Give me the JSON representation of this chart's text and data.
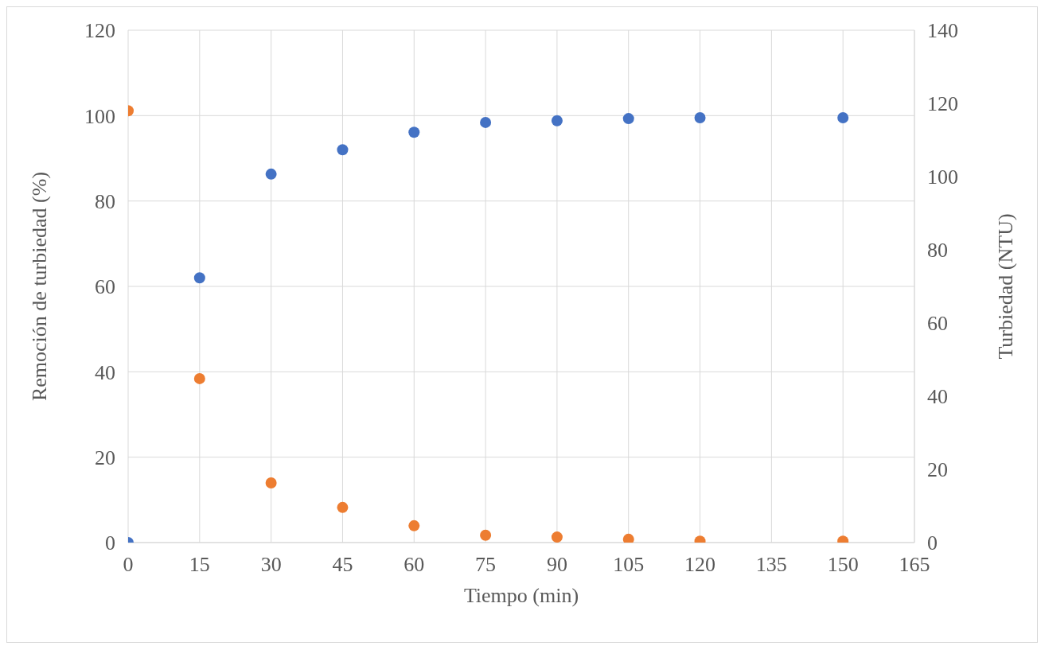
{
  "chart_data": {
    "type": "scatter",
    "xlabel": "Tiempo (min)",
    "ylabel": "Remoción de turbiedad (%)",
    "y2label": "Turbiedad (NTU)",
    "x": [
      0,
      15,
      30,
      45,
      60,
      75,
      90,
      105,
      120,
      150
    ],
    "series": [
      {
        "color": "#4472c4",
        "values": [
          0,
          62,
          86.3,
          92,
          96.1,
          98.4,
          98.8,
          99.3,
          99.5,
          99.5
        ]
      },
      {
        "color": "#ed7d31",
        "axis": "y2",
        "values": [
          118,
          44.8,
          16.3,
          9.6,
          4.6,
          2,
          1.5,
          0.9,
          0.4,
          0.4
        ]
      }
    ],
    "xlim": [
      0,
      165
    ],
    "xticks": [
      0,
      15,
      30,
      45,
      60,
      75,
      90,
      105,
      120,
      135,
      150,
      165
    ],
    "ylim": [
      0,
      120
    ],
    "yticks": [
      0,
      20,
      40,
      60,
      80,
      100,
      120
    ],
    "y2lim": [
      0,
      140
    ],
    "y2ticks": [
      0,
      20,
      40,
      60,
      80,
      100,
      120,
      140
    ],
    "grid": true,
    "marker": "circle",
    "legend": false
  }
}
